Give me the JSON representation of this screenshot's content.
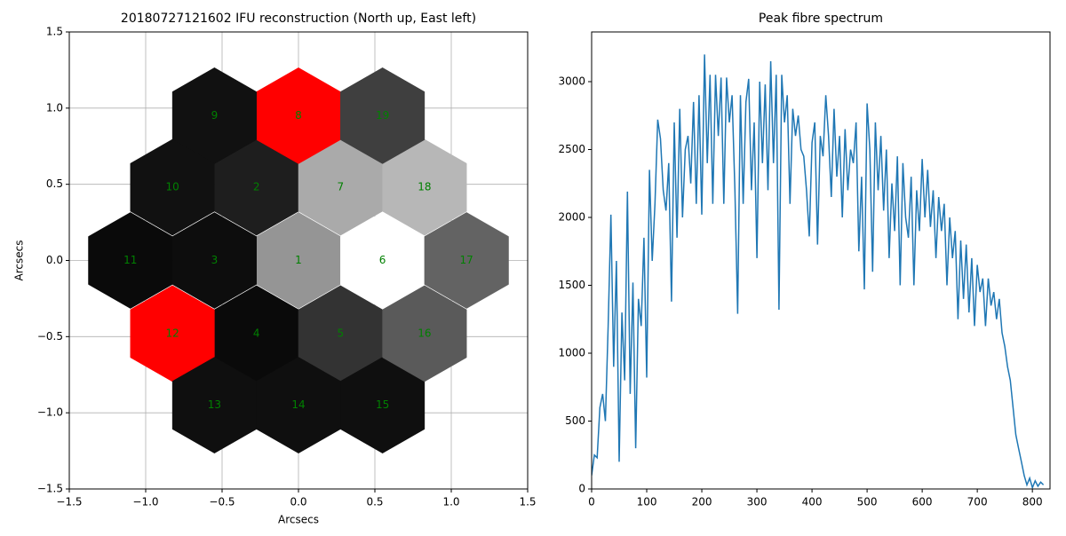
{
  "chart_data": [
    {
      "type": "hexmap",
      "title": "20180727121602 IFU reconstruction (North up, East left)",
      "xlabel": "Arcsecs",
      "ylabel": "Arcsecs",
      "labels": [
        "1",
        "2",
        "3",
        "4",
        "5",
        "6",
        "7",
        "8",
        "9",
        "10",
        "11",
        "12",
        "13",
        "14",
        "15",
        "16",
        "17",
        "18",
        "19"
      ],
      "x": [
        0,
        -0.275,
        -0.55,
        -0.275,
        0.275,
        0.55,
        0.275,
        0,
        -0.55,
        -0.825,
        -1.1,
        -0.825,
        -0.55,
        0,
        0.55,
        0.825,
        1.1,
        0.825,
        0.55
      ],
      "y": [
        0,
        0.48,
        0,
        -0.48,
        -0.48,
        0,
        0.48,
        0.95,
        0.95,
        0.48,
        0,
        -0.48,
        -0.95,
        -0.95,
        -0.95,
        -0.48,
        0,
        0.48,
        0.95
      ],
      "colors": [
        "#959595",
        "#1e1e1e",
        "#0d0d0d",
        "#0a0a0a",
        "#333333",
        "#ffffff",
        "#aaaaaa",
        "#ff0000",
        "#111111",
        "#111111",
        "#0a0a0a",
        "#ff0000",
        "#0f0f0f",
        "#0f0f0f",
        "#0f0f0f",
        "#5a5a5a",
        "#636363",
        "#b7b7b7",
        "#3f3f3f"
      ],
      "label_color": "#008000",
      "xlim": [
        -1.5,
        1.5
      ],
      "ylim": [
        -1.5,
        1.5
      ],
      "xticks": [
        {
          "value": -1.5,
          "label": "−1.5"
        },
        {
          "value": -1,
          "label": "−1.0"
        },
        {
          "value": -0.5,
          "label": "−0.5"
        },
        {
          "value": 0,
          "label": "0.0"
        },
        0.5,
        {
          "value": 1,
          "label": "1.0"
        },
        1.5
      ],
      "yticks": [
        {
          "value": -1.5,
          "label": "−1.5"
        },
        {
          "value": -1,
          "label": "−1.0"
        },
        {
          "value": -0.5,
          "label": "−0.5"
        },
        {
          "value": 0,
          "label": "0.0"
        },
        0.5,
        {
          "value": 1,
          "label": "1.0"
        },
        1.5
      ],
      "grid": true
    },
    {
      "type": "line",
      "title": "Peak fibre spectrum",
      "color": "#1f77b4",
      "x": [
        0,
        5,
        10,
        15,
        20,
        25,
        30,
        35,
        40,
        45,
        50,
        55,
        60,
        65,
        70,
        75,
        80,
        85,
        90,
        95,
        100,
        105,
        110,
        115,
        120,
        125,
        130,
        135,
        140,
        145,
        150,
        155,
        160,
        165,
        170,
        175,
        180,
        185,
        190,
        195,
        200,
        205,
        210,
        215,
        220,
        225,
        230,
        235,
        240,
        245,
        250,
        255,
        260,
        265,
        270,
        275,
        280,
        285,
        290,
        295,
        300,
        305,
        310,
        315,
        320,
        325,
        330,
        335,
        340,
        345,
        350,
        355,
        360,
        365,
        370,
        375,
        380,
        385,
        390,
        395,
        400,
        405,
        410,
        415,
        420,
        425,
        430,
        435,
        440,
        445,
        450,
        455,
        460,
        465,
        470,
        475,
        480,
        485,
        490,
        495,
        500,
        505,
        510,
        515,
        520,
        525,
        530,
        535,
        540,
        545,
        550,
        555,
        560,
        565,
        570,
        575,
        580,
        585,
        590,
        595,
        600,
        605,
        610,
        615,
        620,
        625,
        630,
        635,
        640,
        645,
        650,
        655,
        660,
        665,
        670,
        675,
        680,
        685,
        690,
        695,
        700,
        705,
        710,
        715,
        720,
        725,
        730,
        735,
        740,
        745,
        750,
        755,
        760,
        765,
        770,
        775,
        780,
        785,
        790,
        795,
        800,
        805,
        810,
        815,
        820
      ],
      "values": [
        100,
        250,
        230,
        600,
        700,
        500,
        1200,
        2020,
        900,
        1680,
        200,
        1300,
        800,
        2190,
        700,
        1520,
        300,
        1400,
        1200,
        1850,
        820,
        2350,
        1680,
        2100,
        2720,
        2580,
        2200,
        2050,
        2400,
        1380,
        2700,
        1850,
        2800,
        2000,
        2500,
        2600,
        2250,
        2850,
        2100,
        2900,
        2020,
        3200,
        2400,
        3050,
        2100,
        3050,
        2600,
        3030,
        2100,
        3030,
        2700,
        2900,
        2200,
        1290,
        2900,
        2100,
        2850,
        3020,
        2200,
        2700,
        1700,
        3000,
        2400,
        2980,
        2200,
        3150,
        2400,
        3050,
        1320,
        3050,
        2700,
        2900,
        2100,
        2800,
        2600,
        2750,
        2500,
        2450,
        2200,
        1860,
        2550,
        2700,
        1800,
        2600,
        2450,
        2900,
        2600,
        2150,
        2800,
        2300,
        2600,
        2000,
        2650,
        2200,
        2500,
        2400,
        2700,
        1750,
        2300,
        1470,
        2840,
        2500,
        1600,
        2700,
        2200,
        2600,
        2050,
        2500,
        1700,
        2250,
        1900,
        2450,
        1500,
        2400,
        2000,
        1850,
        2300,
        1500,
        2200,
        1900,
        2430,
        2000,
        2350,
        1930,
        2200,
        1700,
        2150,
        1900,
        2100,
        1500,
        2000,
        1700,
        1900,
        1250,
        1830,
        1400,
        1800,
        1300,
        1700,
        1200,
        1650,
        1450,
        1550,
        1200,
        1550,
        1350,
        1450,
        1250,
        1400,
        1150,
        1050,
        900,
        800,
        600,
        400,
        300,
        200,
        100,
        30,
        80,
        10,
        60,
        20,
        50,
        30
      ],
      "xlim": [
        0,
        832
      ],
      "ylim": [
        0,
        3366
      ],
      "xticks": [
        0,
        100,
        200,
        300,
        400,
        500,
        600,
        700,
        800
      ],
      "yticks": [
        0,
        500,
        1000,
        1500,
        2000,
        2500,
        3000
      ]
    }
  ]
}
